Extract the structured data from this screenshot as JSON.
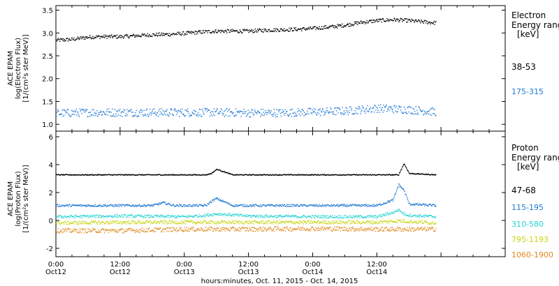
{
  "chart_data": [
    {
      "type": "scatter",
      "ylabel_lines": [
        "ACE EPAM",
        "log(Electron Flux)",
        "[1/(cm²s ster MeV)]"
      ],
      "legend_title_lines": [
        "Electron",
        "Energy ranges",
        "[keV]"
      ],
      "ylim": [
        0.85,
        3.6
      ],
      "yticks": [
        1.0,
        1.5,
        2.0,
        2.5,
        3.0,
        3.5
      ],
      "ytick_labels": [
        "1.0",
        "1.5",
        "2.0",
        "2.5",
        "3.0",
        "3.5"
      ],
      "series": [
        {
          "name": "38-53",
          "color": "#000000",
          "hours": [
            0,
            6,
            12,
            18,
            24,
            30,
            36,
            42,
            48,
            54,
            60,
            66,
            72,
            78,
            84,
            90,
            96,
            102,
            108,
            114,
            120,
            126,
            132,
            138,
            142
          ],
          "values": [
            2.85,
            2.87,
            2.92,
            2.93,
            2.93,
            2.95,
            2.97,
            2.98,
            3.0,
            3.03,
            3.05,
            3.05,
            3.05,
            3.07,
            3.08,
            3.09,
            3.11,
            3.14,
            3.18,
            3.24,
            3.28,
            3.3,
            3.28,
            3.25,
            3.23
          ],
          "scatter": 0.04
        },
        {
          "name": "175-315",
          "color": "#1f78d4",
          "hours": [
            0,
            12,
            24,
            36,
            48,
            60,
            72,
            84,
            96,
            108,
            114,
            120,
            132,
            142
          ],
          "values": [
            1.25,
            1.27,
            1.27,
            1.27,
            1.27,
            1.27,
            1.26,
            1.26,
            1.28,
            1.3,
            1.33,
            1.36,
            1.33,
            1.28
          ],
          "scatter": 0.09
        }
      ]
    },
    {
      "type": "scatter",
      "ylabel_lines": [
        "ACE EPAM",
        "log(Proton Flux)",
        "[1/(cm²s ster MeV)]"
      ],
      "legend_title_lines": [
        "Proton",
        "Energy ranges",
        "[keV]"
      ],
      "ylim": [
        -2.6,
        6.4
      ],
      "yticks": [
        -2,
        0,
        2,
        4,
        6
      ],
      "ytick_labels": [
        "-2",
        "0",
        "2",
        "4",
        "6"
      ],
      "series": [
        {
          "name": "47-68",
          "color": "#000000",
          "hours": [
            0,
            30,
            36,
            40,
            48,
            56,
            58,
            60,
            66,
            72,
            90,
            120,
            128,
            130,
            132,
            142
          ],
          "values": [
            3.3,
            3.3,
            3.3,
            3.3,
            3.3,
            3.3,
            3.4,
            3.7,
            3.3,
            3.3,
            3.3,
            3.3,
            3.3,
            4.1,
            3.4,
            3.3
          ],
          "scatter": 0.03
        },
        {
          "name": "115-195",
          "color": "#1f78d4",
          "hours": [
            0,
            30,
            36,
            40,
            44,
            48,
            56,
            58,
            60,
            66,
            72,
            90,
            120,
            126,
            128,
            130,
            132,
            142
          ],
          "values": [
            1.1,
            1.1,
            1.1,
            1.3,
            1.1,
            1.1,
            1.1,
            1.4,
            1.6,
            1.1,
            1.1,
            1.1,
            1.1,
            1.5,
            2.6,
            2.2,
            1.2,
            1.1
          ],
          "scatter": 0.08
        },
        {
          "name": "310-580",
          "color": "#22d3d3",
          "hours": [
            0,
            24,
            48,
            56,
            60,
            72,
            96,
            120,
            126,
            128,
            130,
            132,
            142
          ],
          "values": [
            0.3,
            0.35,
            0.3,
            0.4,
            0.5,
            0.35,
            0.3,
            0.3,
            0.6,
            0.8,
            0.5,
            0.4,
            0.3
          ],
          "scatter": 0.1
        },
        {
          "name": "795-1193",
          "color": "#c8d40f",
          "hours": [
            0,
            24,
            48,
            72,
            96,
            120,
            128,
            142
          ],
          "values": [
            -0.15,
            -0.1,
            -0.1,
            -0.1,
            -0.1,
            -0.1,
            0.0,
            -0.15
          ],
          "scatter": 0.12
        },
        {
          "name": "1060-1900",
          "color": "#e08a1e",
          "hours": [
            0,
            24,
            48,
            72,
            96,
            120,
            142
          ],
          "values": [
            -0.7,
            -0.7,
            -0.6,
            -0.6,
            -0.55,
            -0.6,
            -0.6
          ],
          "scatter": 0.16
        }
      ]
    }
  ],
  "x_axis": {
    "label": "hours:minutes, Oct. 11, 2015 - Oct. 14, 2015",
    "xlim_hours": [
      0,
      168
    ],
    "ticks": [
      {
        "hour": 0,
        "time": "0:00",
        "day": "Oct12"
      },
      {
        "hour": 24,
        "time": "12:00",
        "day": "Oct12"
      },
      {
        "hour": 48,
        "time": "0:00",
        "day": "Oct13"
      },
      {
        "hour": 72,
        "time": "12:00",
        "day": "Oct13"
      },
      {
        "hour": 96,
        "time": "0:00",
        "day": "Oct14"
      },
      {
        "hour": 120,
        "time": "12:00",
        "day": "Oct14"
      }
    ]
  }
}
